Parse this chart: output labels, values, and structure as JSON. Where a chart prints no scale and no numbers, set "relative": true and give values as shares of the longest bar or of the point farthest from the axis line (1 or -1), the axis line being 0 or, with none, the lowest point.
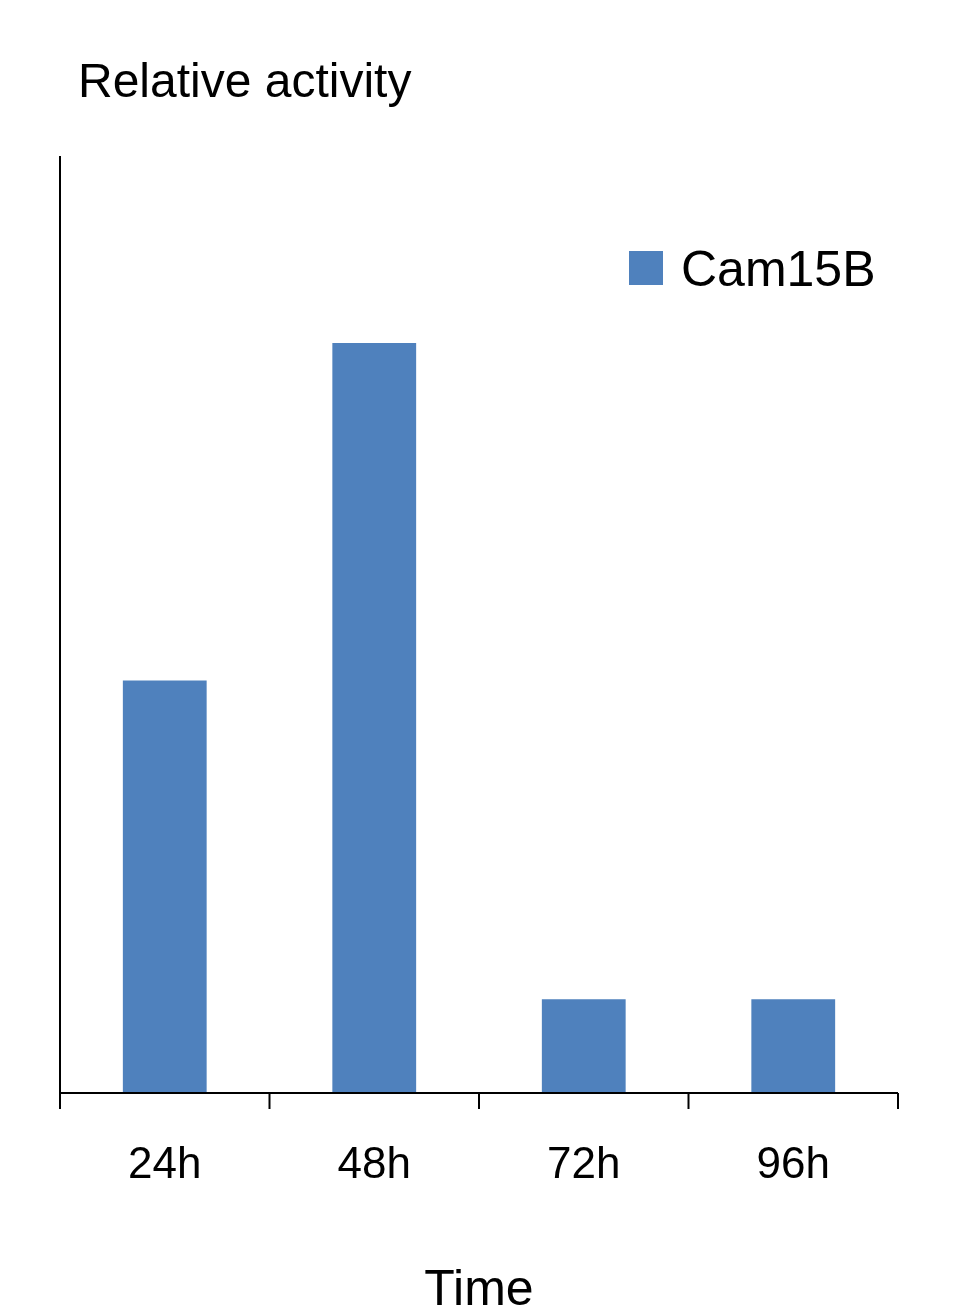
{
  "chart_data": {
    "type": "bar",
    "title": "Relative activity",
    "xlabel": "Time",
    "relative": true,
    "categories": [
      "24h",
      "48h",
      "72h",
      "96h"
    ],
    "series": [
      {
        "name": "Cam15B",
        "color": "#4f81bd",
        "values": [
          0.55,
          1,
          0.125,
          0.125
        ]
      }
    ],
    "legend": "top right"
  }
}
